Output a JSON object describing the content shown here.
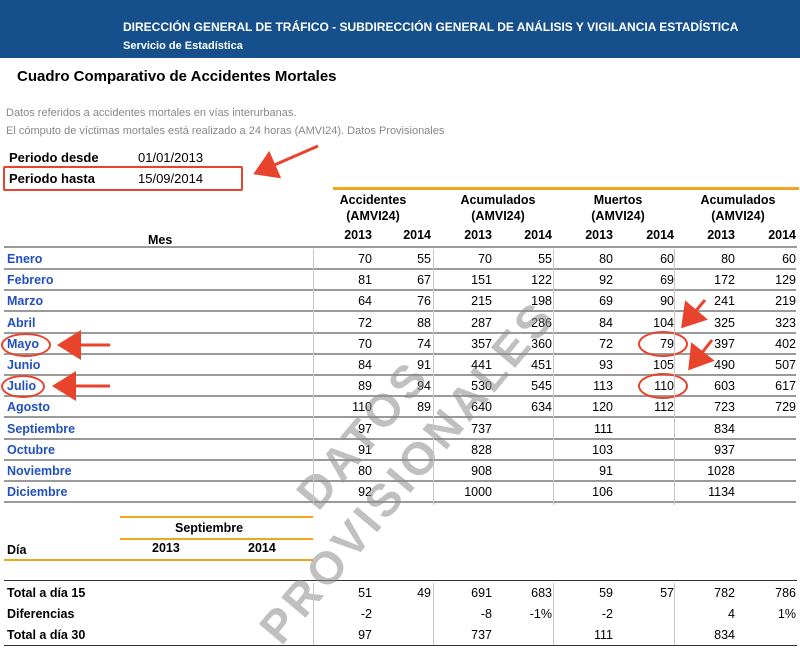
{
  "header": {
    "org": "DIRECCIÓN GENERAL DE TRÁFICO - SUBDIRECCIÓN GENERAL DE ANÁLISIS Y VIGILANCIA ESTADÍSTICA",
    "service": "Servicio de Estadística",
    "banner_color": "#16508c"
  },
  "title": "Cuadro Comparativo de Accidentes Mortales",
  "notes": [
    "Datos referidos a accidentes mortales en vías interurbanas.",
    "El cómputo de víctimas mortales está realizado a 24 horas (AMVI24). Datos Provisionales"
  ],
  "period": {
    "desde_label": "Periodo desde",
    "desde_value": "01/01/2013",
    "hasta_label": "Periodo hasta",
    "hasta_value": "15/09/2014"
  },
  "table": {
    "mes_label": "Mes",
    "groups": [
      {
        "line1": "Accidentes",
        "line2": "(AMVI24)"
      },
      {
        "line1": "Acumulados",
        "line2": "(AMVI24)"
      },
      {
        "line1": "Muertos",
        "line2": "(AMVI24)"
      },
      {
        "line1": "Acumulados",
        "line2": "(AMVI24)"
      }
    ],
    "years": [
      "2013",
      "2014",
      "2013",
      "2014",
      "2013",
      "2014",
      "2013",
      "2014"
    ],
    "rows": [
      {
        "month": "Enero",
        "values": [
          "70",
          "55",
          "70",
          "55",
          "80",
          "60",
          "80",
          "60"
        ]
      },
      {
        "month": "Febrero",
        "values": [
          "81",
          "67",
          "151",
          "122",
          "92",
          "69",
          "172",
          "129"
        ]
      },
      {
        "month": "Marzo",
        "values": [
          "64",
          "76",
          "215",
          "198",
          "69",
          "90",
          "241",
          "219"
        ]
      },
      {
        "month": "Abril",
        "values": [
          "72",
          "88",
          "287",
          "286",
          "84",
          "104",
          "325",
          "323"
        ]
      },
      {
        "month": "Mayo",
        "values": [
          "70",
          "74",
          "357",
          "360",
          "72",
          "79",
          "397",
          "402"
        ]
      },
      {
        "month": "Junio",
        "values": [
          "84",
          "91",
          "441",
          "451",
          "93",
          "105",
          "490",
          "507"
        ]
      },
      {
        "month": "Julio",
        "values": [
          "89",
          "94",
          "530",
          "545",
          "113",
          "110",
          "603",
          "617"
        ]
      },
      {
        "month": "Agosto",
        "values": [
          "110",
          "89",
          "640",
          "634",
          "120",
          "112",
          "723",
          "729"
        ]
      },
      {
        "month": "Septiembre",
        "values": [
          "97",
          "",
          "737",
          "",
          "111",
          "",
          "834",
          ""
        ]
      },
      {
        "month": "Octubre",
        "values": [
          "91",
          "",
          "828",
          "",
          "103",
          "",
          "937",
          ""
        ]
      },
      {
        "month": "Noviembre",
        "values": [
          "80",
          "",
          "908",
          "",
          "91",
          "",
          "1028",
          ""
        ]
      },
      {
        "month": "Diciembre",
        "values": [
          "92",
          "",
          "1000",
          "",
          "106",
          "",
          "1134",
          ""
        ]
      }
    ]
  },
  "sub_table": {
    "month_label": "Septiembre",
    "year1": "2013",
    "year2": "2014",
    "dia_label": "Día"
  },
  "totals": [
    {
      "label": "Total a día 15",
      "values": [
        "51",
        "49",
        "691",
        "683",
        "59",
        "57",
        "782",
        "786"
      ]
    },
    {
      "label": "Diferencias",
      "values": [
        "-2",
        "",
        "-8",
        "-1%",
        "-2",
        "",
        "4",
        "1%"
      ]
    },
    {
      "label": "Total a día 30",
      "values": [
        "97",
        "",
        "737",
        "",
        "111",
        "",
        "834",
        ""
      ]
    }
  ],
  "watermark": [
    "DATOS",
    "PROVISIONALES"
  ],
  "colors": {
    "accent_orange": "#f3a51e",
    "month_blue": "#2250c2",
    "highlight_red": "#e8432c"
  }
}
